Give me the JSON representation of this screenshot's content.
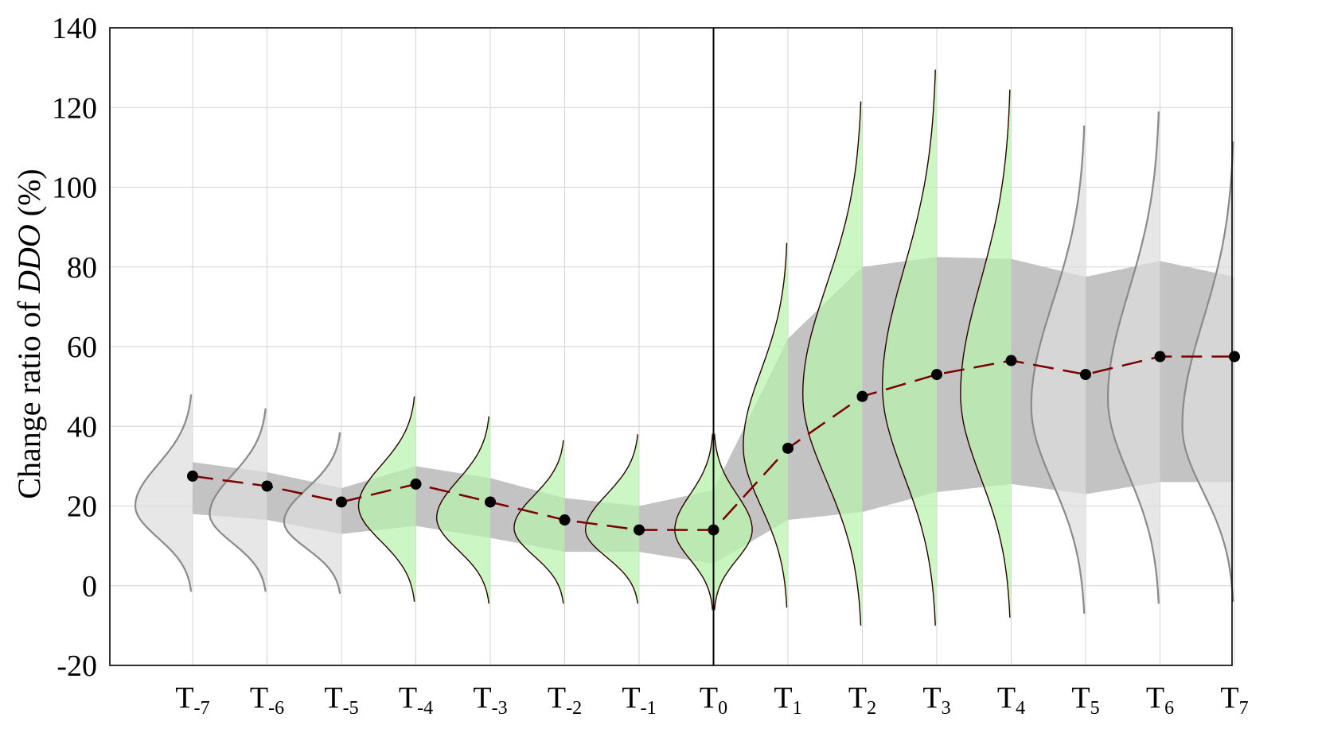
{
  "chart_data": {
    "type": "line",
    "title": "",
    "xlabel": "",
    "ylabel": {
      "prefix": "Change ratio of ",
      "italic": "DDO",
      "suffix": " (%)"
    },
    "ylim": [
      -20,
      140
    ],
    "yticks": [
      -20,
      0,
      20,
      40,
      60,
      80,
      100,
      120,
      140
    ],
    "grid": true,
    "event_index": 7,
    "categories": [
      {
        "base": "T",
        "sub": "-7"
      },
      {
        "base": "T",
        "sub": "-6"
      },
      {
        "base": "T",
        "sub": "-5"
      },
      {
        "base": "T",
        "sub": "-4"
      },
      {
        "base": "T",
        "sub": "-3"
      },
      {
        "base": "T",
        "sub": "-2"
      },
      {
        "base": "T",
        "sub": "-1"
      },
      {
        "base": "T",
        "sub": "0"
      },
      {
        "base": "T",
        "sub": "1"
      },
      {
        "base": "T",
        "sub": "2"
      },
      {
        "base": "T",
        "sub": "3"
      },
      {
        "base": "T",
        "sub": "4"
      },
      {
        "base": "T",
        "sub": "5"
      },
      {
        "base": "T",
        "sub": "6"
      },
      {
        "base": "T",
        "sub": "7"
      }
    ],
    "mean": [
      27.5,
      25.0,
      21.0,
      25.5,
      21.0,
      16.5,
      14.0,
      14.0,
      34.5,
      47.5,
      53.0,
      56.5,
      53.0,
      57.5,
      57.5
    ],
    "band_upper": [
      31.0,
      28.5,
      24.5,
      30.0,
      27.0,
      22.0,
      20.0,
      24.0,
      62.0,
      80.0,
      82.5,
      82.0,
      77.5,
      81.5,
      77.5
    ],
    "band_lower": [
      18.0,
      16.5,
      13.0,
      15.0,
      12.0,
      8.5,
      8.5,
      5.5,
      16.5,
      18.5,
      23.5,
      25.5,
      23.0,
      26.0,
      26.0
    ],
    "distributions": [
      {
        "highlight": false,
        "min": -1.5,
        "max": 48.0,
        "peak": 20.0,
        "width": 0.77
      },
      {
        "highlight": false,
        "min": -1.5,
        "max": 44.5,
        "peak": 18.0,
        "width": 0.77
      },
      {
        "highlight": false,
        "min": -2.0,
        "max": 38.5,
        "peak": 16.0,
        "width": 0.77
      },
      {
        "highlight": true,
        "min": -4.0,
        "max": 47.5,
        "peak": 20.0,
        "width": 0.77
      },
      {
        "highlight": true,
        "min": -4.5,
        "max": 42.5,
        "peak": 17.0,
        "width": 0.72
      },
      {
        "highlight": true,
        "min": -4.5,
        "max": 36.5,
        "peak": 14.5,
        "width": 0.68
      },
      {
        "highlight": true,
        "min": -4.5,
        "max": 38.0,
        "peak": 14.0,
        "width": 0.72
      },
      {
        "highlight": true,
        "min": -6.0,
        "max": 38.0,
        "peak": 14.0,
        "width": 0.52,
        "two_sided": true
      },
      {
        "highlight": true,
        "min": -5.5,
        "max": 86.0,
        "peak": 35.0,
        "width": 0.6
      },
      {
        "highlight": true,
        "min": -10.0,
        "max": 121.5,
        "peak": 48.0,
        "width": 0.8
      },
      {
        "highlight": true,
        "min": -10.0,
        "max": 129.5,
        "peak": 50.0,
        "width": 0.73
      },
      {
        "highlight": true,
        "min": -8.0,
        "max": 124.5,
        "peak": 48.0,
        "width": 0.68
      },
      {
        "highlight": false,
        "min": -7.0,
        "max": 115.5,
        "peak": 45.0,
        "width": 0.73
      },
      {
        "highlight": false,
        "min": -4.5,
        "max": 119.0,
        "peak": 47.0,
        "width": 0.7
      },
      {
        "highlight": false,
        "min": -4.0,
        "max": 111.5,
        "peak": 40.0,
        "width": 0.7
      }
    ]
  },
  "colors": {
    "band": "#c3c3c3",
    "highlight_fill": "#b9f2ad",
    "highlight_stroke": "#2b0000",
    "normal_fill": "#dedede",
    "normal_stroke": "#8a8a8a",
    "mean_line": "#7a0000",
    "marker": "#000000",
    "grid": "#d4d4d4"
  }
}
